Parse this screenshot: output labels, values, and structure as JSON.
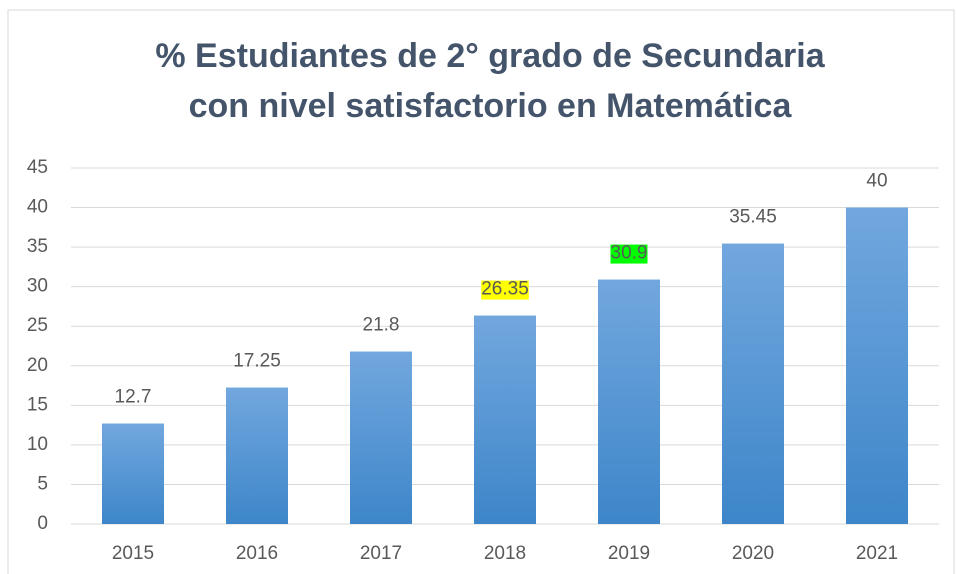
{
  "chart_data": {
    "type": "bar",
    "title": [
      "% Estudiantes de 2° grado de Secundaria",
      "con nivel satisfactorio en Matemática"
    ],
    "categories": [
      "2015",
      "2016",
      "2017",
      "2018",
      "2019",
      "2020",
      "2021"
    ],
    "values": [
      12.7,
      17.25,
      21.8,
      26.35,
      30.9,
      35.45,
      40
    ],
    "value_label_backgrounds": [
      null,
      null,
      null,
      "#ffff00",
      "#00ff00",
      null,
      null
    ],
    "color": "#5b9bd5",
    "ylim": [
      0,
      45
    ],
    "yticks": [
      0,
      5,
      10,
      15,
      20,
      25,
      30,
      35,
      40,
      45
    ],
    "grid": true
  }
}
